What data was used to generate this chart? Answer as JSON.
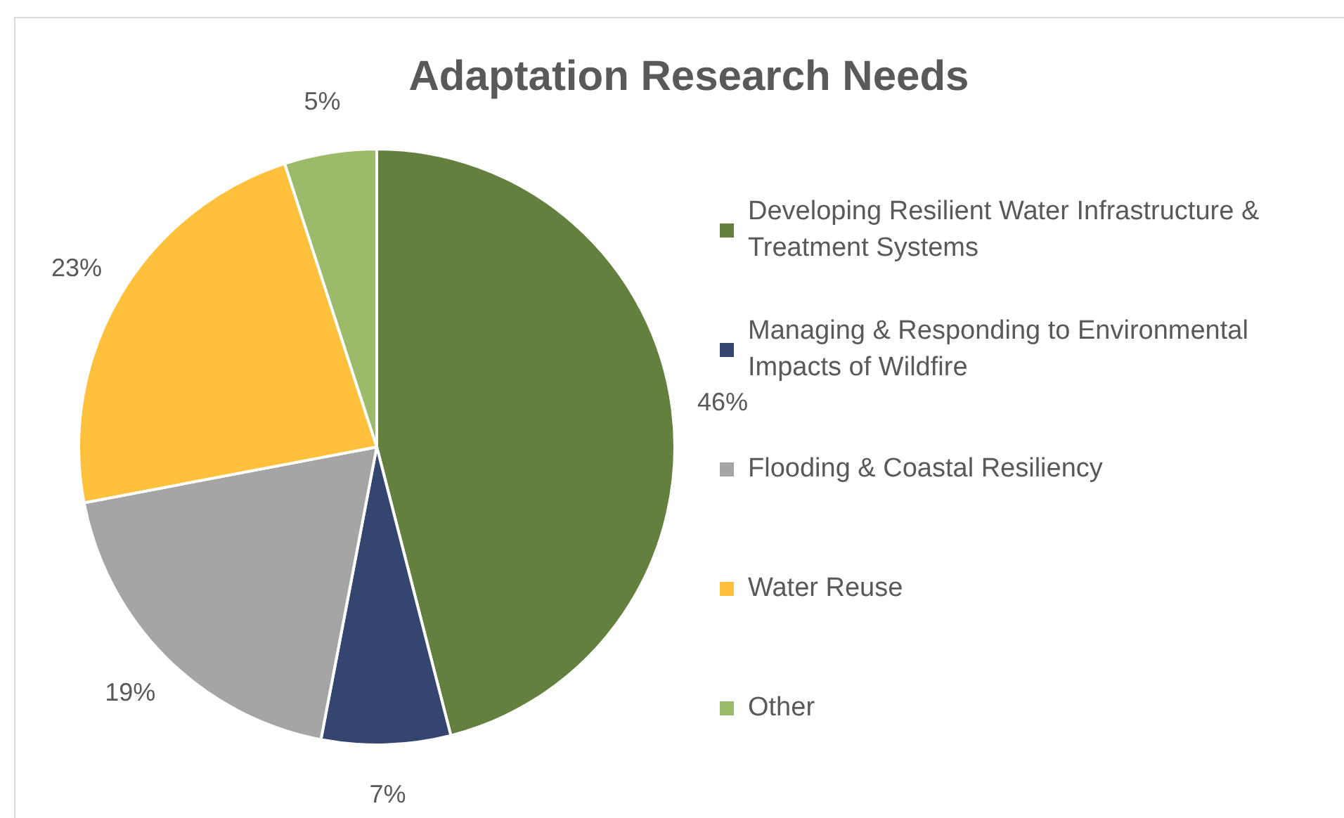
{
  "chart_data": {
    "type": "pie",
    "title": "Adaptation Research Needs",
    "categories": [
      "Developing Resilient Water Infrastructure & Treatment Systems",
      "Managing & Responding to Environmental Impacts of Wildfire",
      "Flooding & Coastal Resiliency",
      "Water Reuse",
      "Other"
    ],
    "values": [
      46,
      7,
      19,
      23,
      5
    ],
    "colors": [
      "#63803e",
      "#344570",
      "#a5a5a5",
      "#ffc03c",
      "#9bbb6b"
    ],
    "value_labels": [
      "46%",
      "7%",
      "19%",
      "23%",
      "5%"
    ],
    "legend": "right"
  }
}
